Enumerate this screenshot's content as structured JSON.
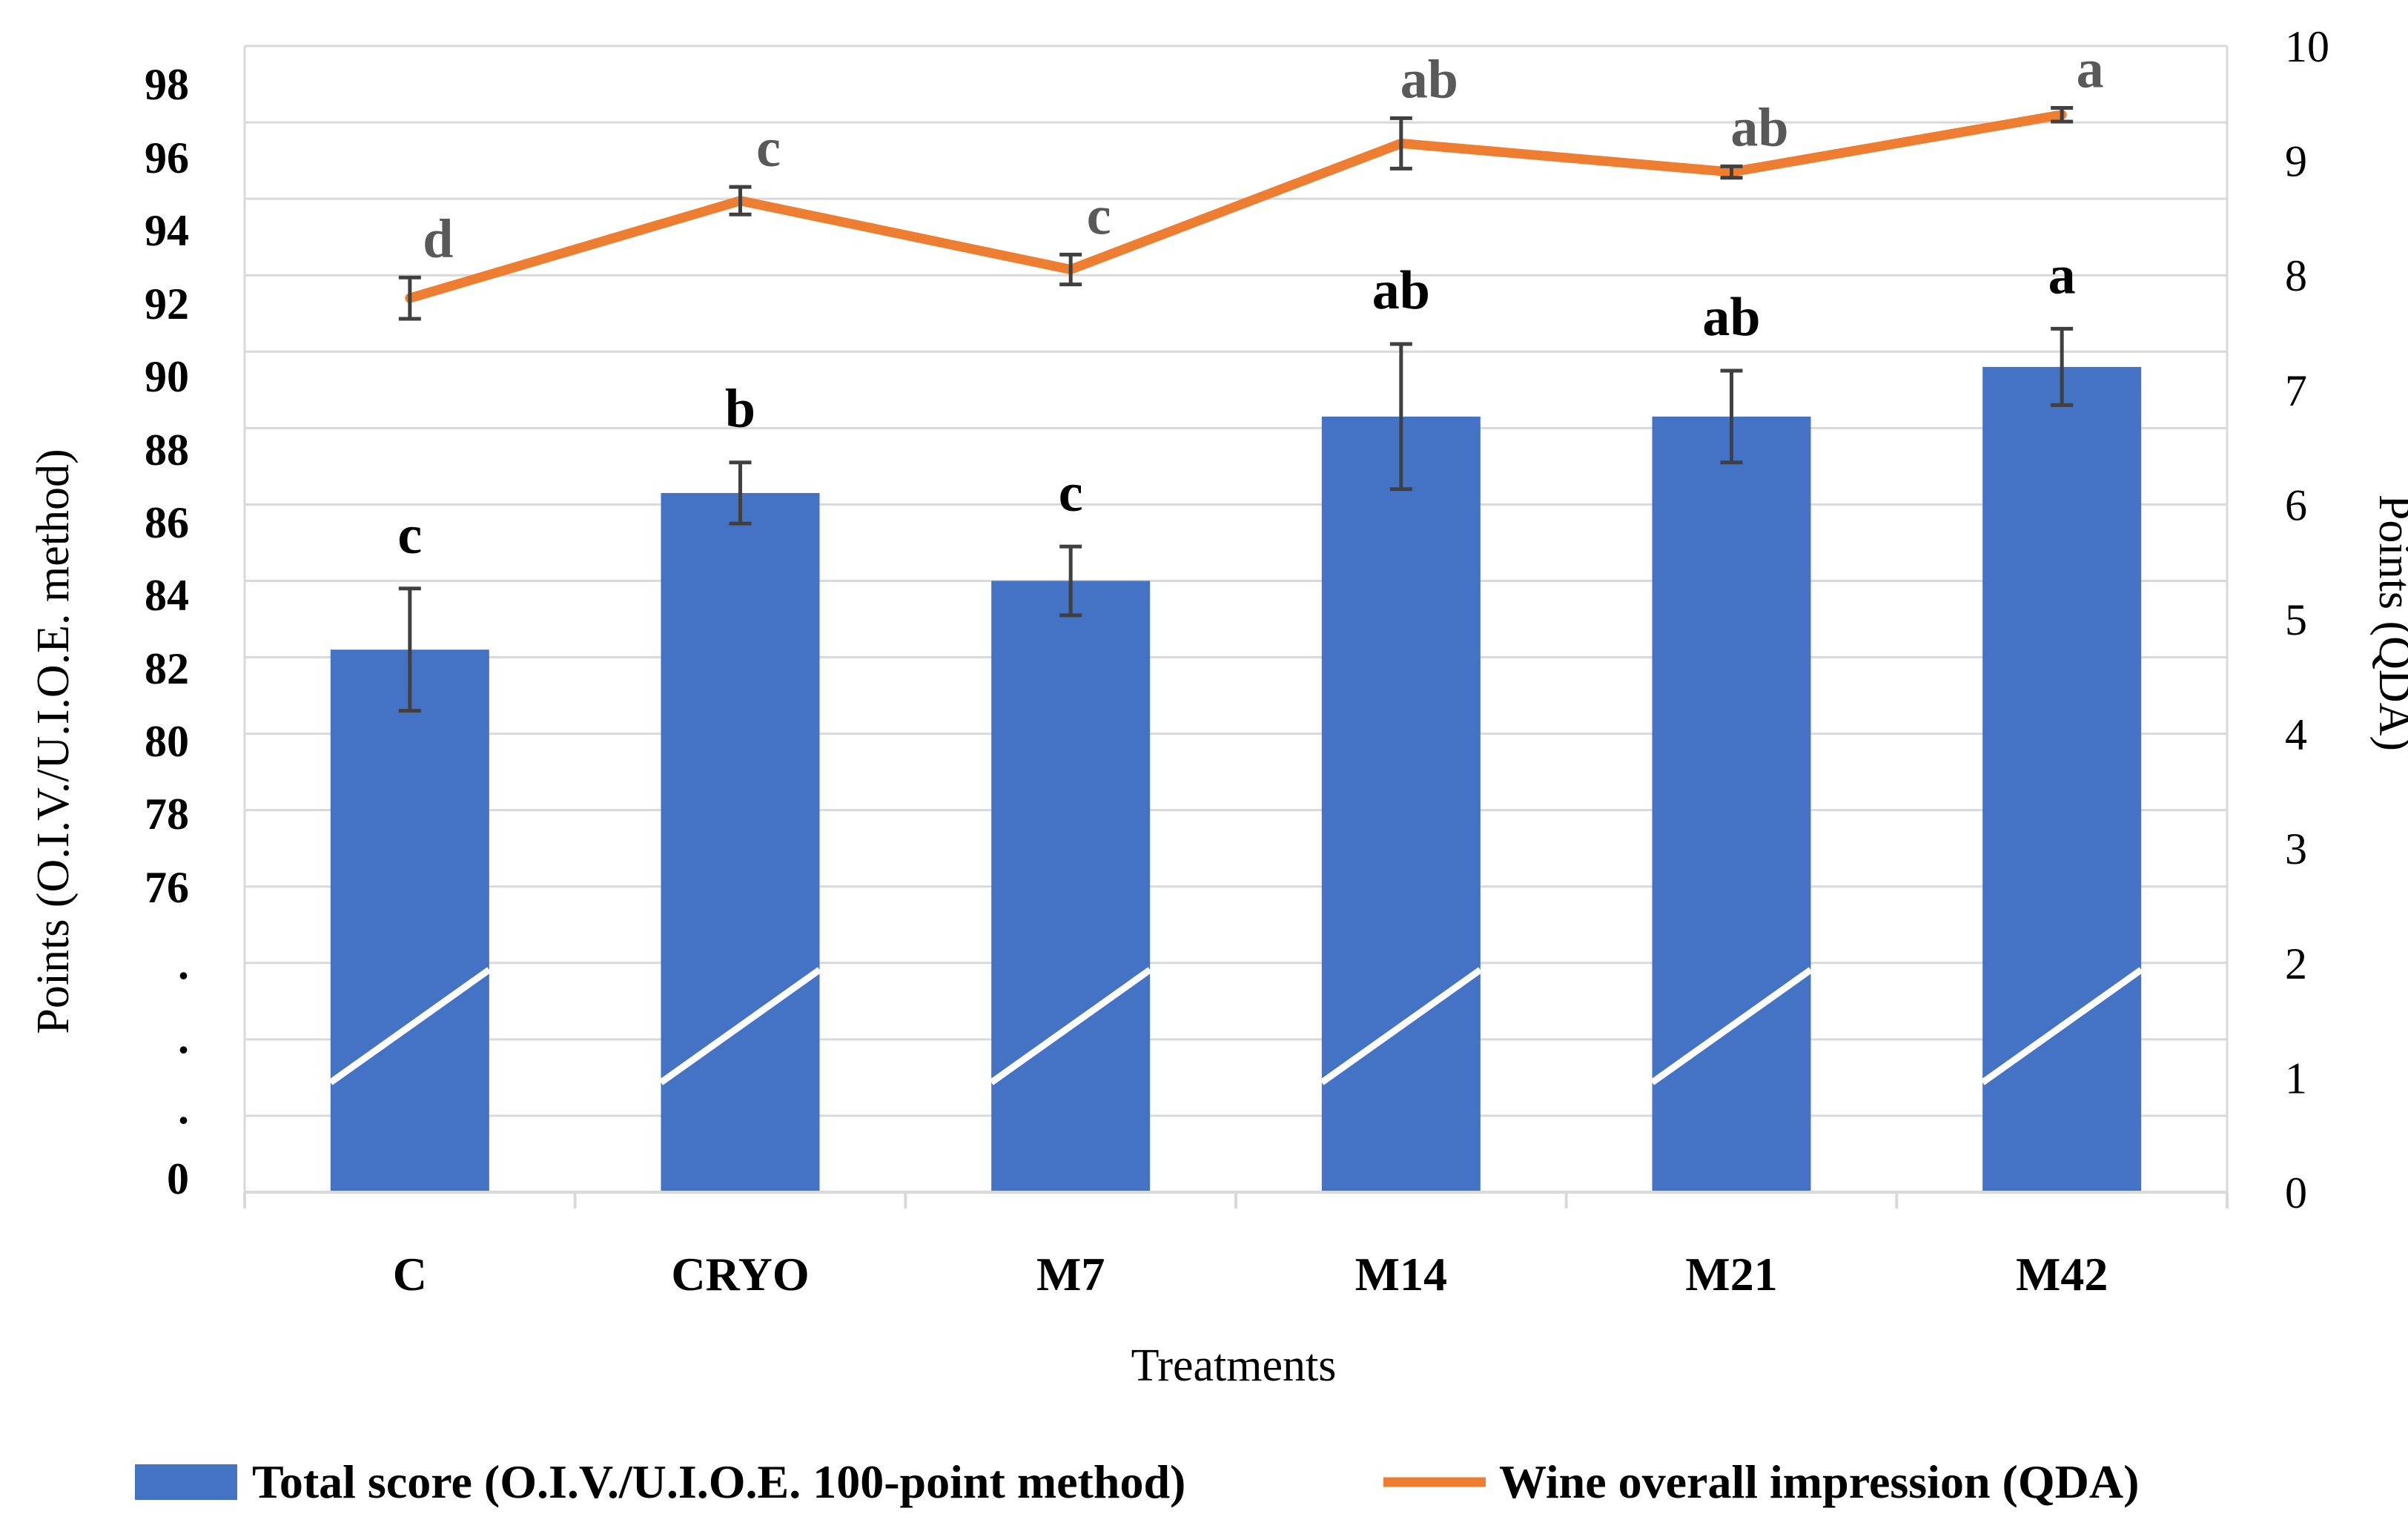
{
  "chart_data": {
    "type": "bar",
    "categories": [
      "C",
      "CRYO",
      "M7",
      "M14",
      "M21",
      "M42"
    ],
    "series": [
      {
        "name": "Total score (O.I.V./U.I.O.E. 100-point method)",
        "type": "bar",
        "axis": "left",
        "color": "#4472C4",
        "values": [
          83.2,
          87.3,
          85.0,
          89.3,
          89.3,
          90.6
        ],
        "error": [
          1.6,
          0.8,
          0.9,
          1.9,
          1.2,
          1.0
        ],
        "letters": [
          "c",
          "b",
          "c",
          "ab",
          "ab",
          "a"
        ]
      },
      {
        "name": "Wine overall impression (QDA)",
        "type": "line",
        "axis": "right",
        "color": "#ED7D31",
        "values": [
          7.8,
          8.65,
          8.05,
          9.15,
          8.9,
          9.4
        ],
        "error": [
          0.18,
          0.12,
          0.13,
          0.22,
          0.05,
          0.06
        ],
        "letters": [
          "d",
          "c",
          "c",
          "ab",
          "ab",
          "a"
        ]
      }
    ],
    "xlabel": "Treatments",
    "ylabel": "Points (O.I.V./U.I.O.E. method)",
    "ylabel_right": "Points (QDA)",
    "y_left_ticks": [
      "98",
      "96",
      "94",
      "92",
      "90",
      "88",
      "86",
      "84",
      "82",
      "80",
      "78",
      "76",
      ".",
      ".",
      ".",
      "0"
    ],
    "y_left_tick_values": [
      98,
      96,
      94,
      92,
      90,
      88,
      86,
      84,
      82,
      80,
      78,
      76
    ],
    "y_left_break": true,
    "ylim_right": [
      0,
      10
    ],
    "y_right_ticks": [
      "10",
      "9",
      "8",
      "7",
      "6",
      "5",
      "4",
      "3",
      "2",
      "1",
      "0"
    ],
    "grid": "horizontal",
    "legend_position": "bottom"
  }
}
